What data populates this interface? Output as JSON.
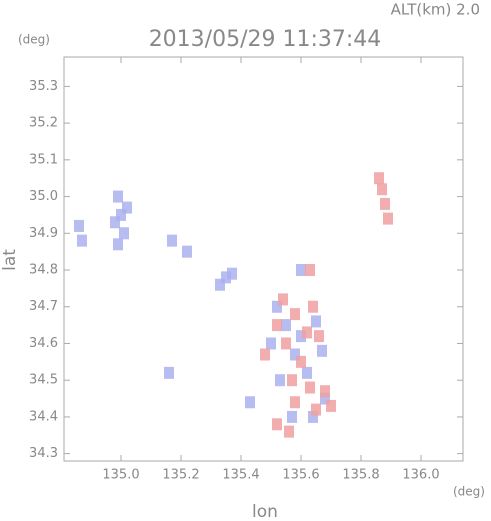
{
  "chart_data": {
    "type": "scatter",
    "title": "2013/05/29 11:37:44",
    "annotation": "ALT(km) 2.0",
    "y_unit": "(deg)",
    "x_unit": "(deg)",
    "xlabel": "lon",
    "ylabel": "lat",
    "xlim": [
      134.81,
      136.14
    ],
    "ylim": [
      34.28,
      35.38
    ],
    "xticks": [
      {
        "value": 135,
        "label": "135.0"
      },
      135.2,
      135.4,
      135.6,
      135.8,
      {
        "value": 136,
        "label": "136.0"
      }
    ],
    "yticks": [
      34.3,
      34.4,
      34.5,
      34.6,
      34.7,
      34.8,
      34.9,
      {
        "value": 35,
        "label": "35.0"
      },
      35.1,
      35.2,
      35.3
    ],
    "series": [
      {
        "color": "#aab0ee",
        "x": [
          134.99,
          135.0,
          135.01,
          134.99,
          134.98,
          135.02,
          134.86,
          134.87,
          135.17,
          135.22,
          135.35,
          135.33,
          135.37,
          135.16,
          135.43,
          135.52,
          135.55,
          135.6,
          135.65,
          135.58,
          135.53,
          135.62,
          135.68,
          135.57,
          135.64,
          135.6,
          135.67,
          135.5
        ],
        "y": [
          35.0,
          34.95,
          34.9,
          34.87,
          34.93,
          34.97,
          34.92,
          34.88,
          34.88,
          34.85,
          34.78,
          34.76,
          34.79,
          34.52,
          34.44,
          34.7,
          34.65,
          34.62,
          34.66,
          34.57,
          34.5,
          34.52,
          34.45,
          34.4,
          34.4,
          34.8,
          34.58,
          34.6
        ]
      },
      {
        "color": "#f0a0a0",
        "x": [
          135.87,
          135.88,
          135.89,
          135.86,
          135.54,
          135.58,
          135.62,
          135.66,
          135.55,
          135.6,
          135.63,
          135.68,
          135.58,
          135.52,
          135.56,
          135.65,
          135.7,
          135.57,
          135.64,
          135.52,
          135.63,
          135.48
        ],
        "y": [
          35.02,
          34.98,
          34.94,
          35.05,
          34.72,
          34.68,
          34.63,
          34.62,
          34.6,
          34.55,
          34.48,
          34.47,
          34.44,
          34.38,
          34.36,
          34.42,
          34.43,
          34.5,
          34.7,
          34.65,
          34.8,
          34.57
        ]
      }
    ]
  }
}
